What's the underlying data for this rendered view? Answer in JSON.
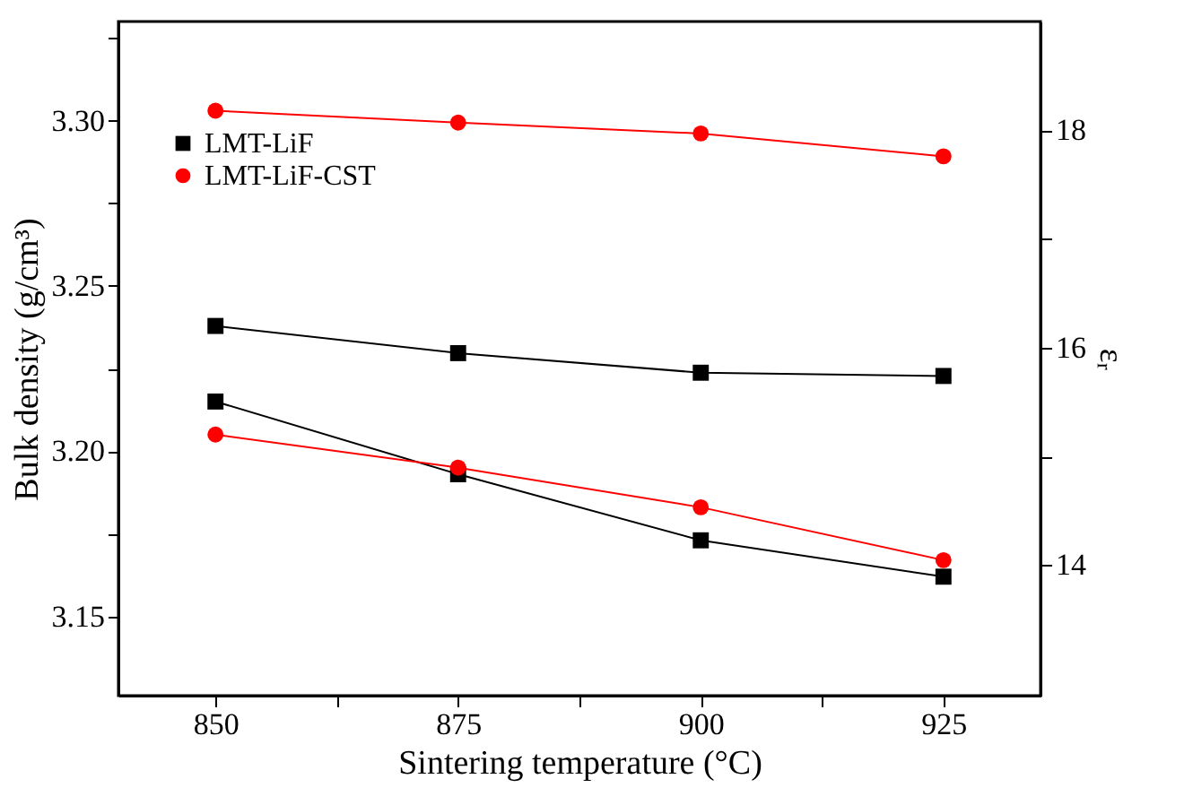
{
  "chart_data": {
    "type": "line",
    "xlabel": "Sintering temperature (°C)",
    "ylabel": "Bulk density (g/cm³)",
    "y2label": "εᵣ",
    "x": [
      850,
      875,
      900,
      925
    ],
    "series": [
      {
        "name": "LMT-LiF",
        "color": "#000000",
        "marker": "square",
        "values": [
          3.215,
          3.193,
          3.173,
          3.162
        ]
      },
      {
        "name": "LMT-LiF-CST",
        "color": "#ff0000",
        "marker": "circle",
        "values": [
          3.205,
          3.195,
          3.183,
          3.167
        ]
      },
      {
        "color": "#000000",
        "marker": "square",
        "axis": "y2",
        "values": [
          16.2,
          15.95,
          15.77,
          15.74
        ]
      },
      {
        "color": "#ff0000",
        "marker": "circle",
        "axis": "y2",
        "values": [
          18.18,
          18.07,
          17.97,
          17.76
        ]
      }
    ],
    "xlim": [
      840,
      935
    ],
    "xticks": [
      850,
      {
        "value": 862.5,
        "label": null
      },
      875,
      {
        "value": 887.5,
        "label": null
      },
      900,
      {
        "value": 912.5,
        "label": null
      },
      925
    ],
    "ylim": [
      3.126,
      3.33
    ],
    "yticks": [
      {
        "value": 3.15,
        "label": "3.15"
      },
      {
        "value": 3.175,
        "label": null
      },
      {
        "value": 3.2,
        "label": "3.20"
      },
      {
        "value": 3.225,
        "label": null
      },
      {
        "value": 3.25,
        "label": "3.25"
      },
      {
        "value": 3.275,
        "label": null
      },
      {
        "value": 3.3,
        "label": "3.30"
      },
      {
        "value": 3.325,
        "label": null
      }
    ],
    "y2lim": [
      12.8,
      19.0
    ],
    "y2ticks": [
      14,
      {
        "value": 15,
        "label": null
      },
      16,
      {
        "value": 17,
        "label": null
      },
      18
    ],
    "grid": false,
    "legend": "top left",
    "line_style": "solid"
  }
}
